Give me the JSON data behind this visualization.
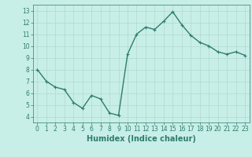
{
  "x": [
    0,
    1,
    2,
    3,
    4,
    5,
    6,
    7,
    8,
    9,
    10,
    11,
    12,
    13,
    14,
    15,
    16,
    17,
    18,
    19,
    20,
    21,
    22,
    23
  ],
  "y": [
    8.0,
    7.0,
    6.5,
    6.3,
    5.2,
    4.7,
    5.8,
    5.5,
    4.3,
    4.1,
    9.3,
    11.0,
    11.6,
    11.4,
    12.1,
    12.9,
    11.8,
    10.9,
    10.3,
    10.0,
    9.5,
    9.3,
    9.5,
    9.2
  ],
  "line_color": "#2e7d6e",
  "marker": "+",
  "markersize": 3,
  "linewidth": 1.0,
  "xlabel": "Humidex (Indice chaleur)",
  "xlabel_fontsize": 7,
  "xlim": [
    -0.5,
    23.5
  ],
  "ylim": [
    3.5,
    13.5
  ],
  "yticks": [
    4,
    5,
    6,
    7,
    8,
    9,
    10,
    11,
    12,
    13
  ],
  "xticks": [
    0,
    1,
    2,
    3,
    4,
    5,
    6,
    7,
    8,
    9,
    10,
    11,
    12,
    13,
    14,
    15,
    16,
    17,
    18,
    19,
    20,
    21,
    22,
    23
  ],
  "bg_color": "#c8eee8",
  "grid_color": "#b0d8d0",
  "tick_fontsize": 5.5,
  "fig_bg": "#c8eee8",
  "spine_color": "#2e7d6e"
}
